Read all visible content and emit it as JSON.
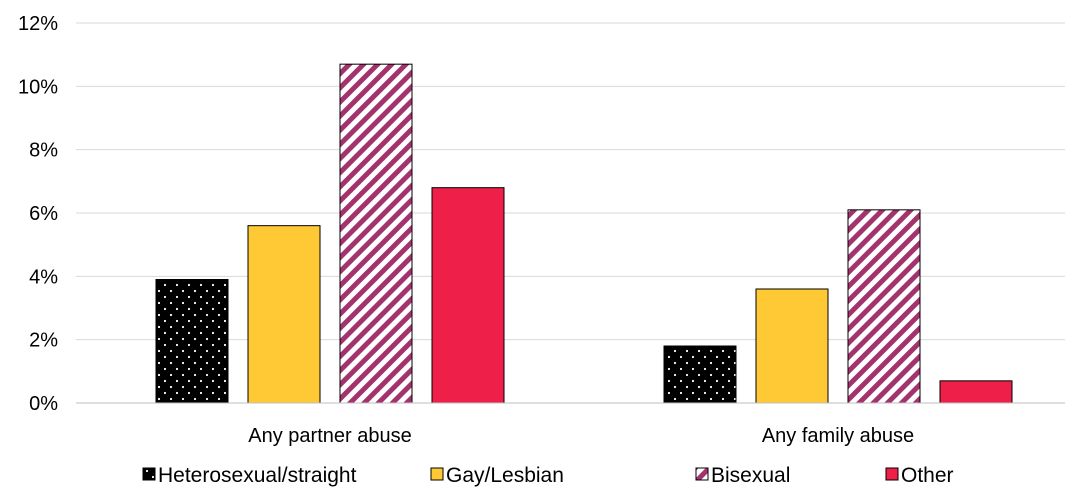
{
  "chart_data": {
    "type": "bar",
    "title": "",
    "xlabel": "",
    "ylabel": "",
    "categories": [
      "Any partner abuse",
      "Any family abuse"
    ],
    "series": [
      {
        "name": "Heterosexual/straight",
        "values": [
          3.9,
          1.8
        ],
        "color": "#000000",
        "pattern": "dots"
      },
      {
        "name": "Gay/Lesbian",
        "values": [
          5.6,
          3.6
        ],
        "color": "#ffc935",
        "pattern": "solid"
      },
      {
        "name": "Bisexual",
        "values": [
          10.7,
          6.1
        ],
        "color": "#a3336e",
        "pattern": "diagonal-stripes"
      },
      {
        "name": "Other",
        "values": [
          6.8,
          0.7
        ],
        "color": "#ee2049",
        "pattern": "solid"
      }
    ],
    "ylim": [
      0,
      12
    ],
    "yticks": [
      0,
      2,
      4,
      6,
      8,
      10,
      12
    ],
    "ytick_labels": [
      "0%",
      "2%",
      "4%",
      "6%",
      "8%",
      "10%",
      "12%"
    ],
    "grid": true,
    "legend_position": "bottom"
  }
}
